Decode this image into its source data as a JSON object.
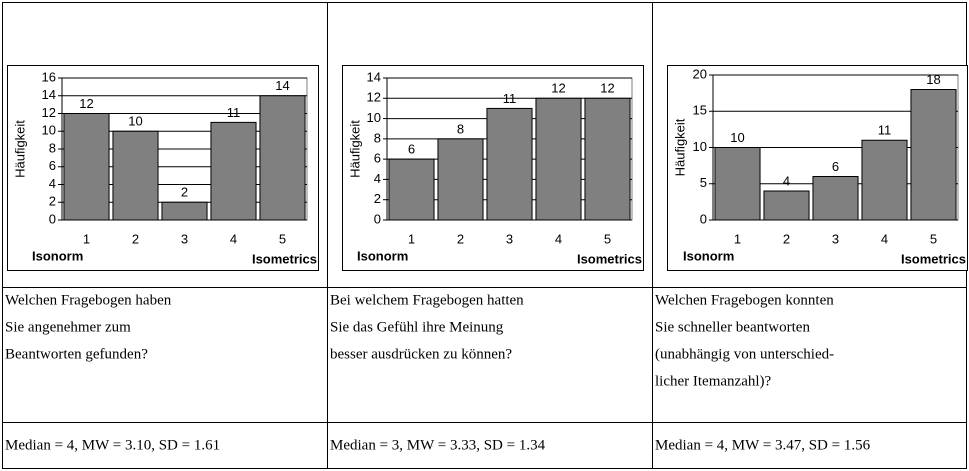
{
  "charts": [
    {
      "type": "bar",
      "y_label": "Häufigkeit",
      "x_left_label": "Isonorm",
      "x_right_label": "Isometrics",
      "categories": [
        "1",
        "2",
        "3",
        "4",
        "5"
      ],
      "values": [
        12,
        10,
        2,
        11,
        14
      ],
      "color": "#808080",
      "ylim": [
        0,
        16
      ],
      "yticks": [
        0,
        2,
        4,
        6,
        8,
        10,
        12,
        14,
        16
      ],
      "grid": true
    },
    {
      "type": "bar",
      "y_label": "Häufigkeit",
      "x_left_label": "Isonorm",
      "x_right_label": "Isometrics",
      "categories": [
        "1",
        "2",
        "3",
        "4",
        "5"
      ],
      "values": [
        6,
        8,
        11,
        12,
        12
      ],
      "color": "#808080",
      "ylim": [
        0,
        14
      ],
      "yticks": [
        0,
        2,
        4,
        6,
        8,
        10,
        12,
        14
      ],
      "grid": true
    },
    {
      "type": "bar",
      "y_label": "Häufigkeit",
      "x_left_label": "Isonorm",
      "x_right_label": "Isometrics",
      "categories": [
        "1",
        "2",
        "3",
        "4",
        "5"
      ],
      "values": [
        10,
        4,
        6,
        11,
        18
      ],
      "color": "#808080",
      "ylim": [
        0,
        20
      ],
      "yticks": [
        0,
        5,
        10,
        15,
        20
      ],
      "grid": true
    }
  ],
  "questions": [
    {
      "lines": [
        "Welchen Fragebogen haben",
        "Sie angenehmer zum",
        "Beantworten gefunden?"
      ]
    },
    {
      "lines": [
        "Bei welchem Fragebogen hatten",
        "Sie das Gefühl ihre Meinung",
        "besser ausdrücken zu können?"
      ]
    },
    {
      "lines": [
        "Welchen Fragebogen konnten",
        "Sie schneller beantworten",
        "(unabhängig von unterschied-",
        "licher Itemanzahl)?"
      ]
    }
  ],
  "stats": [
    "Median = 4, MW = 3.10, SD = 1.61",
    "Median = 3, MW = 3.33, SD = 1.34",
    "Median = 4, MW = 3.47, SD = 1.56"
  ]
}
